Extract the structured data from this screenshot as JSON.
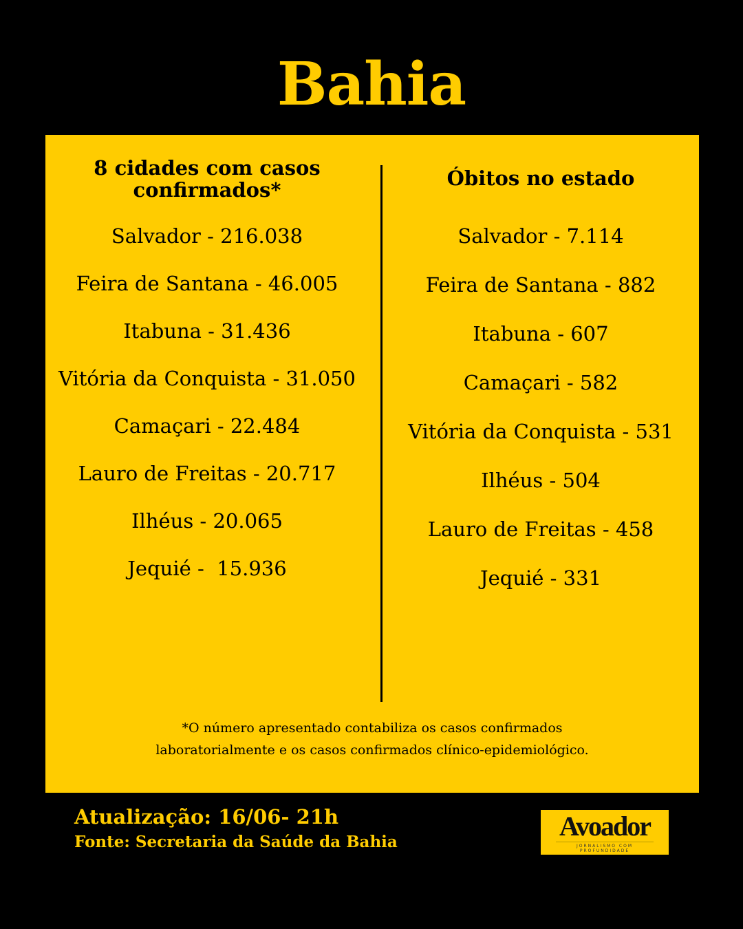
{
  "title": "Bahia",
  "cases": {
    "heading_line1": "8 cidades com casos",
    "heading_line2": "confirmados*",
    "items": [
      "Salvador - 216.038",
      "Feira de Santana - 46.005",
      "Itabuna - 31.436",
      "Vitória da Conquista - 31.050",
      "Camaçari - 22.484",
      "Lauro de Freitas - 20.717",
      "Ilhéus - 20.065",
      "Jequié -  15.936"
    ]
  },
  "deaths": {
    "heading": "Óbitos no estado",
    "items": [
      "Salvador - 7.114",
      "Feira de Santana - 882",
      "Itabuna - 607",
      "Camaçari - 582",
      "Vitória da Conquista - 531",
      "Ilhéus - 504",
      "Lauro de Freitas - 458",
      "Jequié - 331"
    ]
  },
  "footnote": {
    "line1": "*O número apresentado contabiliza os casos confirmados",
    "line2": "laboratorialmente e os casos confirmados clínico-epidemiológico."
  },
  "footer": {
    "update": "Atualização: 16/06- 21h",
    "source": "Fonte: Secretaria da Saúde da Bahia"
  },
  "logo": {
    "name": "Avoador",
    "tagline": "JORNALISMO COM PROFUNDIDADE"
  },
  "colors": {
    "accent": "#FFCC00",
    "background": "#000000"
  }
}
